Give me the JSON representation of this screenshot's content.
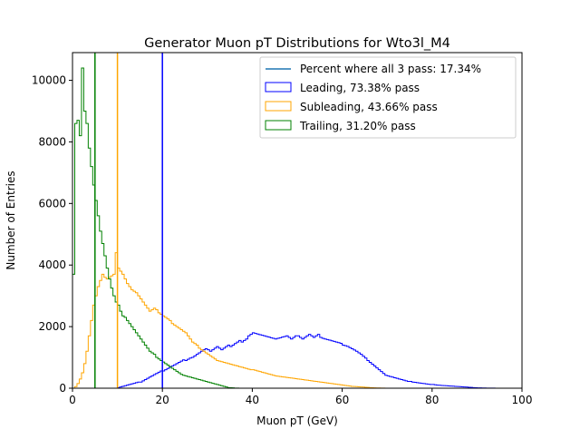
{
  "chart_data": {
    "type": "histogram",
    "title": "Generator Muon pT Distributions for Wto3l_M4",
    "xlabel": "Muon pT (GeV)",
    "ylabel": "Number of Entries",
    "xlim": [
      0,
      100
    ],
    "ylim": [
      0,
      10900
    ],
    "xticks": [
      0,
      20,
      40,
      60,
      80,
      100
    ],
    "xtick_labels": [
      "0",
      "20",
      "40",
      "60",
      "80",
      "100"
    ],
    "yticks": [
      0,
      2000,
      4000,
      6000,
      8000,
      10000
    ],
    "ytick_labels": [
      "0",
      "2000",
      "4000",
      "6000",
      "8000",
      "10000"
    ],
    "grid": false,
    "legend_position": "top-right",
    "legend_line": {
      "label": "Percent where all 3 pass: 17.34%",
      "color": "#1f77b4"
    },
    "bin_width": 0.5,
    "series": [
      {
        "name": "Leading, 73.38% pass",
        "color": "#0000ff",
        "cut": 20,
        "bins_start": 0,
        "values": [
          0,
          0,
          0,
          0,
          0,
          0,
          0,
          0,
          0,
          0,
          0,
          0,
          0,
          0,
          0,
          0,
          0,
          0,
          0,
          0,
          20,
          40,
          60,
          80,
          100,
          120,
          140,
          160,
          180,
          200,
          200,
          240,
          280,
          320,
          360,
          400,
          440,
          480,
          520,
          560,
          560,
          600,
          640,
          680,
          720,
          760,
          800,
          840,
          880,
          920,
          900,
          940,
          980,
          1000,
          1050,
          1100,
          1150,
          1200,
          1250,
          1280,
          1250,
          1200,
          1250,
          1300,
          1350,
          1300,
          1250,
          1300,
          1350,
          1400,
          1350,
          1400,
          1450,
          1500,
          1550,
          1500,
          1550,
          1600,
          1700,
          1750,
          1800,
          1780,
          1760,
          1740,
          1720,
          1700,
          1680,
          1660,
          1640,
          1620,
          1600,
          1620,
          1640,
          1660,
          1680,
          1700,
          1650,
          1600,
          1650,
          1700,
          1700,
          1650,
          1600,
          1650,
          1700,
          1750,
          1700,
          1650,
          1700,
          1750,
          1650,
          1620,
          1600,
          1580,
          1560,
          1540,
          1520,
          1500,
          1480,
          1460,
          1400,
          1380,
          1360,
          1320,
          1280,
          1240,
          1200,
          1150,
          1100,
          1040,
          980,
          900,
          840,
          780,
          720,
          660,
          600,
          540,
          480,
          420,
          400,
          380,
          360,
          340,
          320,
          300,
          280,
          260,
          240,
          220,
          220,
          200,
          190,
          180,
          170,
          160,
          150,
          140,
          130,
          120,
          120,
          110,
          100,
          95,
          90,
          85,
          80,
          75,
          70,
          65,
          60,
          55,
          50,
          45,
          40,
          35,
          30,
          25,
          20,
          15,
          12,
          10,
          8,
          6,
          4,
          3,
          2,
          2,
          1,
          1
        ]
      },
      {
        "name": "Subleading, 43.66% pass",
        "color": "#ffa500",
        "cut": 10,
        "bins_start": 0,
        "values": [
          0,
          50,
          150,
          300,
          500,
          800,
          1200,
          1700,
          2200,
          2700,
          3000,
          3300,
          3500,
          3700,
          3600,
          3550,
          3600,
          3650,
          3700,
          4400,
          3900,
          3800,
          3700,
          3550,
          3400,
          3300,
          3200,
          3150,
          3100,
          3000,
          2900,
          2800,
          2700,
          2600,
          2500,
          2550,
          2600,
          2550,
          2450,
          2400,
          2350,
          2300,
          2250,
          2200,
          2100,
          2050,
          2000,
          1950,
          1900,
          1850,
          1800,
          1700,
          1600,
          1500,
          1450,
          1400,
          1300,
          1250,
          1200,
          1150,
          1100,
          1050,
          1000,
          950,
          900,
          880,
          860,
          840,
          820,
          800,
          780,
          760,
          740,
          720,
          700,
          680,
          660,
          640,
          620,
          600,
          600,
          580,
          560,
          540,
          520,
          500,
          480,
          460,
          440,
          420,
          400,
          390,
          380,
          370,
          360,
          350,
          340,
          330,
          320,
          310,
          300,
          290,
          280,
          270,
          260,
          250,
          240,
          230,
          220,
          210,
          200,
          190,
          180,
          170,
          160,
          150,
          140,
          130,
          120,
          110,
          100,
          90,
          80,
          70,
          60,
          55,
          50,
          45,
          40,
          35,
          30,
          25,
          20,
          15,
          10,
          8,
          6,
          4,
          2,
          1,
          1,
          1,
          0,
          0,
          0
        ]
      },
      {
        "name": "Trailing, 31.20% pass",
        "color": "#008000",
        "cut": 5,
        "bins_start": 0,
        "values": [
          3700,
          8600,
          8700,
          8200,
          10400,
          9000,
          8600,
          7800,
          7200,
          6600,
          6100,
          5600,
          5100,
          4700,
          4300,
          3900,
          3550,
          3250,
          3000,
          2800,
          2700,
          2500,
          2350,
          2300,
          2200,
          2100,
          2000,
          1900,
          1800,
          1700,
          1600,
          1500,
          1400,
          1300,
          1200,
          1150,
          1100,
          1000,
          950,
          900,
          850,
          800,
          750,
          700,
          650,
          600,
          550,
          500,
          450,
          420,
          400,
          380,
          360,
          340,
          320,
          300,
          280,
          260,
          240,
          220,
          200,
          180,
          160,
          140,
          120,
          100,
          80,
          60,
          40,
          20,
          15,
          10,
          5,
          3,
          1,
          0
        ]
      }
    ]
  }
}
